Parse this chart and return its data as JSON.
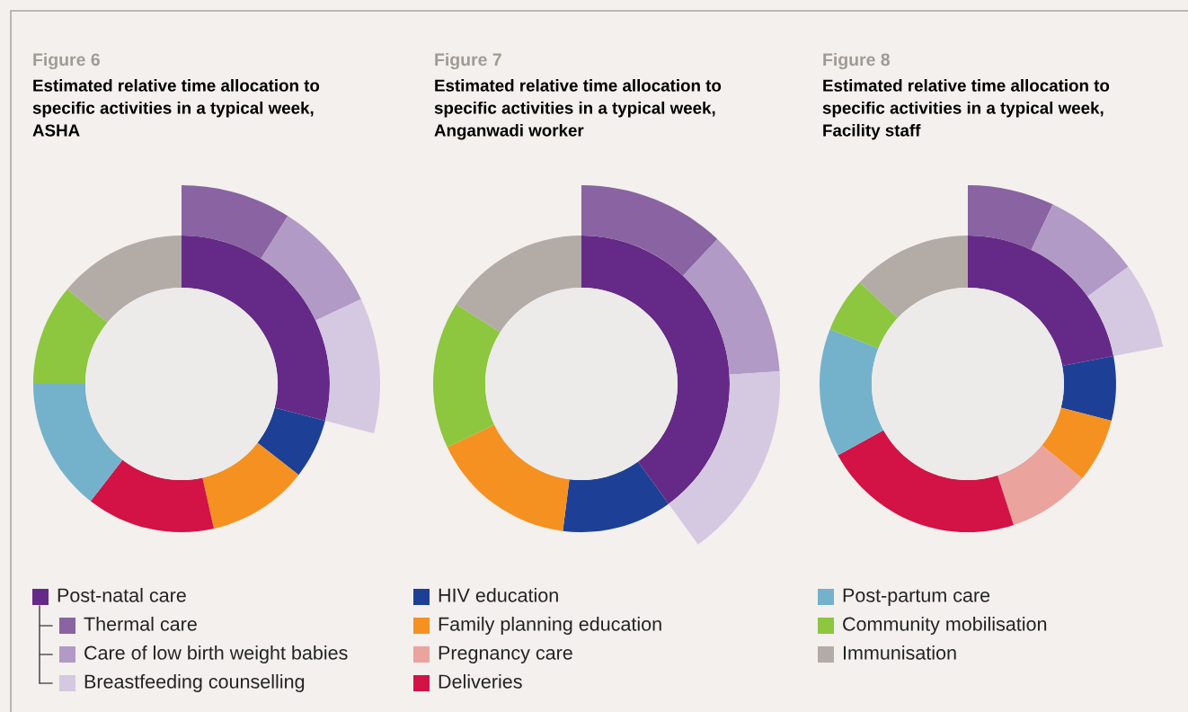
{
  "chart_data": [
    {
      "type": "donut",
      "title": "Figure 6",
      "subtitle": "Estimated relative time allocation to\nspecific activities in a typical week,\nASHA",
      "legend": "bottom",
      "categories": [
        "Post-natal care",
        "Thermal care",
        "Care of low birth weight babies",
        "Breastfeeding counselling",
        "HIV education",
        "Family planning education",
        "Pregnancy care",
        "Deliveries",
        "Post-partum care",
        "Community mobilisation",
        "Immunisation"
      ],
      "colors": [
        "#652a87",
        "#8a63a2",
        "#b19ac5",
        "#d5c8e1",
        "#1d4096",
        "#f59121",
        "#eaa39d",
        "#d31245",
        "#74b2cb",
        "#8dc63f",
        "#b3aba5"
      ],
      "series": [
        {
          "values": [
            29,
            null,
            null,
            null,
            6.5,
            11,
            null,
            14,
            14.5,
            11,
            14
          ]
        },
        {
          "values": [
            null,
            31,
            31,
            38,
            null,
            null,
            null,
            null,
            null,
            null,
            null
          ]
        }
      ]
    },
    {
      "type": "donut",
      "title": "Figure 7",
      "subtitle": "Estimated relative time allocation to\nspecific activities in a typical week,\nAnganwadi worker",
      "categories": [
        null,
        null,
        null,
        null,
        null,
        null,
        null,
        null,
        null,
        null,
        null
      ],
      "colors": [
        "#652a87",
        "#8a63a2",
        "#b19ac5",
        "#d5c8e1",
        "#1d4096",
        "#f59121",
        "#eaa39d",
        "#d31245",
        "#74b2cb",
        "#8dc63f",
        "#b3aba5"
      ],
      "series": [
        {
          "values": [
            40,
            null,
            null,
            null,
            12,
            16,
            null,
            null,
            null,
            16,
            16
          ]
        },
        {
          "values": [
            null,
            30,
            30,
            40,
            null,
            null,
            null,
            null,
            null,
            null,
            null
          ]
        }
      ]
    },
    {
      "type": "donut",
      "title": "Figure 8",
      "subtitle": "Estimated relative time allocation to\nspecific activities in a typical week,\nFacility staff",
      "categories": [
        null,
        null,
        null,
        null,
        null,
        null,
        null,
        null,
        null,
        null,
        null
      ],
      "colors": [
        "#652a87",
        "#8a63a2",
        "#b19ac5",
        "#d5c8e1",
        "#1d4096",
        "#f59121",
        "#eaa39d",
        "#d31245",
        "#74b2cb",
        "#8dc63f",
        "#b3aba5"
      ],
      "series": [
        {
          "values": [
            22,
            null,
            null,
            null,
            7,
            7,
            9,
            22,
            14,
            6,
            13
          ]
        },
        {
          "values": [
            null,
            32,
            36,
            32,
            null,
            null,
            null,
            null,
            null,
            null,
            null
          ]
        }
      ]
    }
  ]
}
